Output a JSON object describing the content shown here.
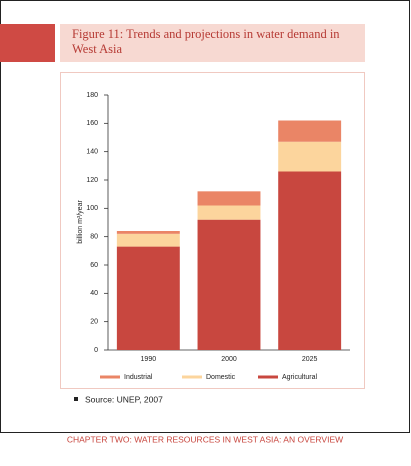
{
  "chart_data": {
    "type": "stacked-bar",
    "title": "Figure 11: Trends and projections in water demand in West Asia",
    "y_label": "billion m³/year",
    "categories": [
      "1990",
      "2000",
      "2025"
    ],
    "series": [
      {
        "name": "Agricultural",
        "color": "#c8473f",
        "values": [
          73,
          92,
          126
        ]
      },
      {
        "name": "Domestic",
        "color": "#fcd59d",
        "values": [
          9,
          10,
          21
        ]
      },
      {
        "name": "Industrial",
        "color": "#ea8566",
        "values": [
          2,
          10,
          15
        ]
      }
    ],
    "legend_order": [
      2,
      1,
      0
    ],
    "ylim": [
      0,
      180
    ],
    "yticks": [
      0,
      20,
      40,
      60,
      80,
      100,
      120,
      140,
      160,
      180
    ],
    "grid": false,
    "source": "Source: UNEP, 2007",
    "footer": "CHAPTER TWO: WATER RESOURCES IN WEST ASIA: AN OVERVIEW"
  }
}
